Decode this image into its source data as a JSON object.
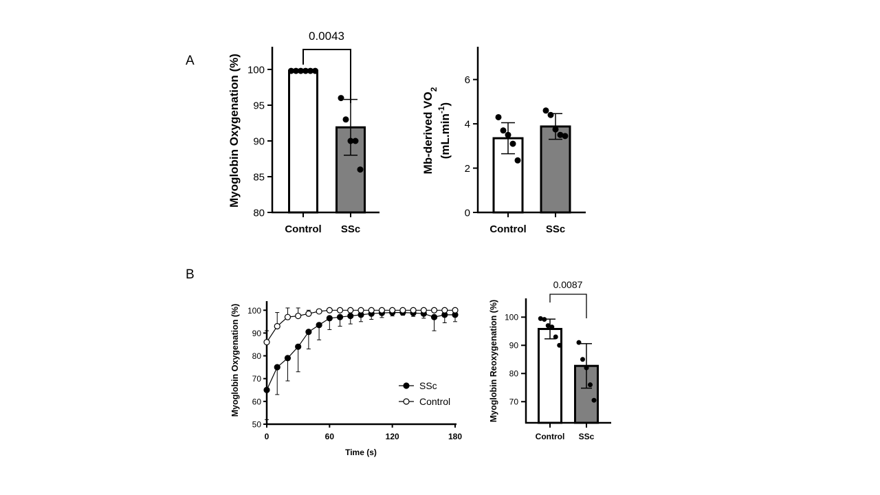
{
  "panel_labels": {
    "a": "A",
    "b": "B"
  },
  "chart_data": [
    {
      "id": "A1",
      "type": "bar",
      "ylabel": "Myoglobin Oxygenation (%)",
      "ylim": [
        80,
        100
      ],
      "yticks": [
        80,
        85,
        90,
        95,
        100
      ],
      "categories": [
        "Control",
        "SSc"
      ],
      "values": [
        99.8,
        91.9
      ],
      "errors": [
        0.2,
        3.9
      ],
      "fills": [
        "#ffffff",
        "#808080"
      ],
      "points": [
        [
          99.8,
          99.8,
          99.8,
          99.8,
          99.8,
          99.8
        ],
        [
          96,
          93,
          90,
          90,
          86
        ]
      ],
      "p_value": "0.0043"
    },
    {
      "id": "A2",
      "type": "bar",
      "ylabel_main": "Mb-derived VO",
      "ylabel_sub": "2",
      "ylabel_line2_pre": "(mL.min",
      "ylabel_line2_sup": "-1",
      "ylabel_line2_post": ")",
      "ylim": [
        0,
        7.2
      ],
      "yticks": [
        0,
        2,
        4,
        6
      ],
      "categories": [
        "Control",
        "SSc"
      ],
      "values": [
        3.35,
        3.88
      ],
      "errors": [
        0.7,
        0.58
      ],
      "fills": [
        "#ffffff",
        "#808080"
      ],
      "points": [
        [
          4.3,
          3.7,
          3.5,
          3.1,
          2.35
        ],
        [
          4.6,
          4.4,
          3.75,
          3.5,
          3.45
        ]
      ]
    },
    {
      "id": "B1",
      "type": "line",
      "xlabel": "Time (s)",
      "ylabel": "Myoglobin Oxygenation (%)",
      "xlim": [
        0,
        180
      ],
      "ylim": [
        50,
        104
      ],
      "xticks": [
        0,
        60,
        120,
        180
      ],
      "yticks": [
        50,
        60,
        70,
        80,
        90,
        100
      ],
      "legend_position": "lower-right",
      "series": [
        {
          "name": "SSc",
          "marker": "filled",
          "x": [
            0,
            10,
            20,
            30,
            40,
            50,
            60,
            70,
            80,
            90,
            100,
            110,
            120,
            130,
            140,
            150,
            160,
            170,
            180
          ],
          "y": [
            65,
            75,
            79,
            84,
            90.5,
            93.5,
            96.5,
            97,
            97.5,
            98,
            98.5,
            98.8,
            99,
            99,
            98.8,
            98.5,
            97,
            98,
            98
          ],
          "err": [
            13,
            12,
            10,
            11,
            7.5,
            6.5,
            5,
            4,
            3.5,
            3,
            2.5,
            2,
            1.5,
            1.2,
            1.5,
            2,
            6,
            3.5,
            3
          ]
        },
        {
          "name": "Control",
          "marker": "open",
          "x": [
            0,
            10,
            20,
            30,
            40,
            50,
            60,
            70,
            80,
            90,
            100,
            110,
            120,
            130,
            140,
            150,
            160,
            170,
            180
          ],
          "y": [
            86,
            93,
            97,
            97.5,
            98.5,
            99.5,
            100,
            100,
            100,
            100,
            100,
            100,
            100,
            100,
            100,
            100,
            100,
            100,
            100
          ],
          "err": [
            5,
            6,
            4,
            3.5,
            1.5,
            0.5,
            0,
            0,
            0,
            0,
            0,
            0,
            0,
            0,
            0,
            0,
            0,
            0,
            0
          ]
        }
      ]
    },
    {
      "id": "B2",
      "type": "bar",
      "ylabel": "Myoglobin Reoxygenation (%)",
      "ylim": [
        62.5,
        103
      ],
      "yticks": [
        70,
        80,
        90,
        100
      ],
      "categories": [
        "Control",
        "SSc"
      ],
      "values": [
        95.8,
        82.7
      ],
      "errors": [
        3.5,
        7.9
      ],
      "fills": [
        "#ffffff",
        "#808080"
      ],
      "points": [
        [
          99.5,
          99.2,
          97,
          96.5,
          93,
          90
        ],
        [
          91,
          85,
          82,
          76,
          70.5
        ]
      ],
      "p_value": "0.0087"
    }
  ]
}
